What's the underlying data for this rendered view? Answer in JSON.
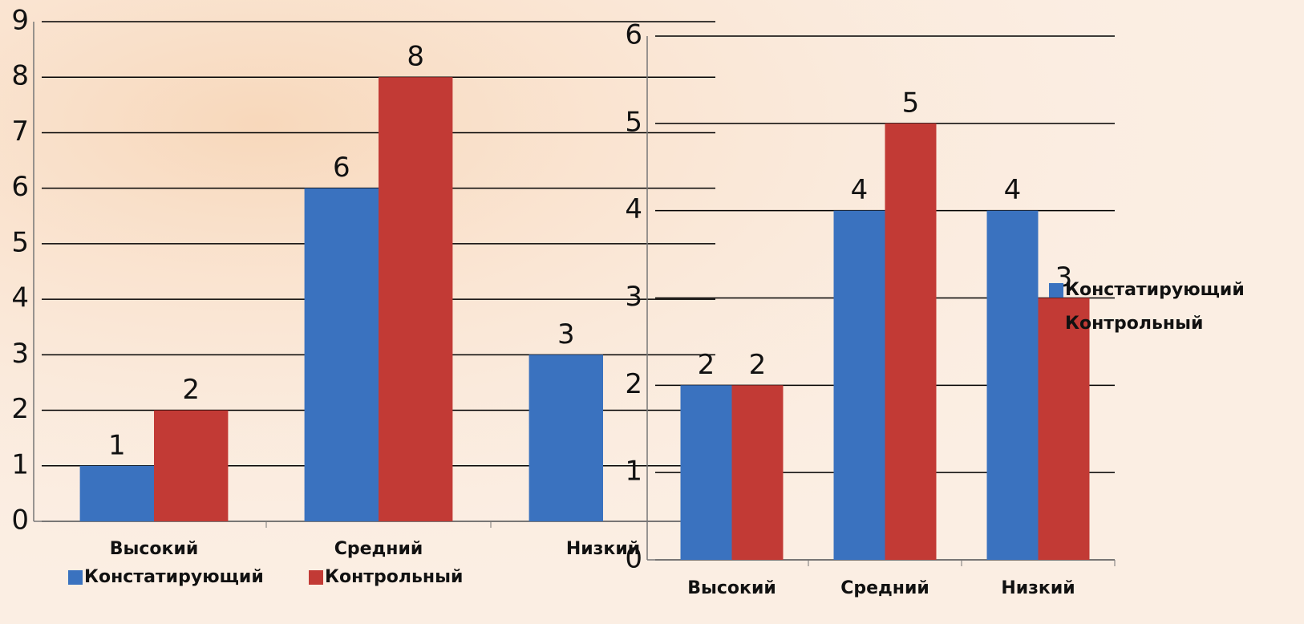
{
  "chart_data": [
    {
      "type": "bar",
      "categories": [
        "Высокий",
        "Средний",
        "Низкий"
      ],
      "series": [
        {
          "name": "Констатирующий",
          "color": "#3a72bf",
          "values": [
            1,
            6,
            3
          ]
        },
        {
          "name": "Контрольный",
          "color": "#c23a35",
          "values": [
            2,
            8,
            null
          ]
        }
      ],
      "ylim": [
        0,
        9
      ],
      "yticks": [
        0,
        1,
        2,
        3,
        4,
        5,
        6,
        7,
        8,
        9
      ],
      "grid": true,
      "legend": "bottom"
    },
    {
      "type": "bar",
      "categories": [
        "Высокий",
        "Средний",
        "Низкий"
      ],
      "series": [
        {
          "name": "Констатирующий",
          "color": "#3a72bf",
          "values": [
            2,
            4,
            4
          ]
        },
        {
          "name": "Контрольный",
          "color": "#c23a35",
          "values": [
            2,
            5,
            3
          ]
        }
      ],
      "ylim": [
        0,
        6
      ],
      "yticks": [
        0,
        1,
        2,
        3,
        4,
        5,
        6
      ],
      "grid": true,
      "legend": "right"
    }
  ]
}
